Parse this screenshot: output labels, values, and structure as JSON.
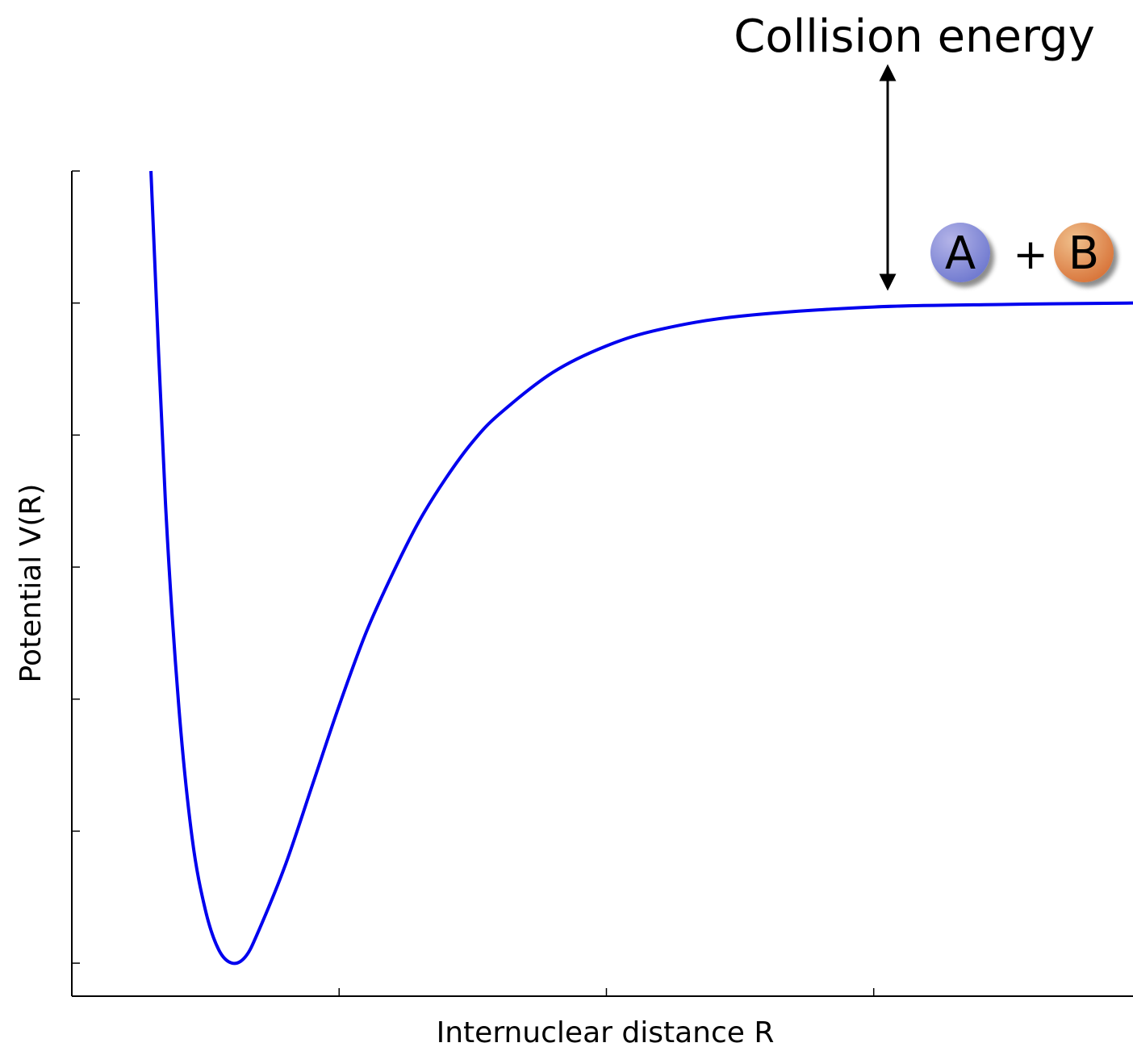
{
  "chart_data": {
    "type": "line",
    "xlabel": "Internuclear distance R",
    "ylabel": "Potential V(R)",
    "annotation": "Collision energy",
    "species": [
      "A",
      "+",
      "B"
    ],
    "x": [
      0.296,
      0.35,
      0.4,
      0.45,
      0.5,
      0.55,
      0.6,
      0.65,
      0.7,
      0.8,
      0.9,
      1.0,
      1.1,
      1.2,
      1.3,
      1.4,
      1.5,
      1.6,
      1.8,
      2.0,
      2.2,
      2.5,
      3.0,
      3.5,
      3.97
    ],
    "series": [
      {
        "color": "#0000ee",
        "values": [
          0.2,
          -0.3,
          -0.61,
          -0.81,
          -0.92,
          -0.98,
          -1.0,
          -0.99,
          -0.95,
          -0.85,
          -0.73,
          -0.61,
          -0.5,
          -0.41,
          -0.33,
          -0.265,
          -0.21,
          -0.168,
          -0.105,
          -0.065,
          -0.04,
          -0.02,
          -0.006,
          -0.002,
          0
        ]
      }
    ],
    "xlim": [
      0,
      3.97
    ],
    "xticks": [
      1,
      2,
      3
    ],
    "ylim": [
      -1.05,
      0.2
    ],
    "yticks": [
      -1.0,
      -0.8,
      -0.6,
      -0.4,
      -0.2,
      0,
      0.2
    ],
    "grid": false
  }
}
